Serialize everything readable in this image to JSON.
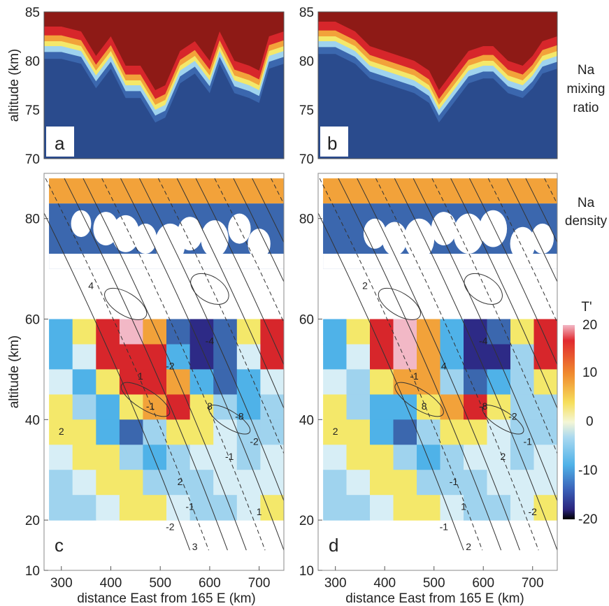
{
  "colors": {
    "background": "#2a4b8d",
    "ocean_blue": "#3b67ae",
    "sky": "#9fd3ee",
    "yellow": "#f4e86a",
    "orange": "#f2a23a",
    "red": "#d7262b",
    "dark_red": "#8e1a16",
    "navy": "#2d2a86",
    "pink": "#f2b8c6"
  },
  "shared_labels": {
    "xlabel": "distance East from 165 E (km)",
    "ylabel": "altitude (km)",
    "top_row_side_label": [
      "Na",
      "mixing",
      "ratio"
    ],
    "bottom_row_side_label": [
      "Na",
      "density"
    ],
    "colorbar_title": "T'",
    "colorbar_ticks": [
      "20",
      "10",
      "0",
      "-10",
      "-20"
    ]
  },
  "chart_data": [
    {
      "panel": "a",
      "type": "heatmap",
      "title": "",
      "xlabel": "",
      "ylabel": "altitude (km)",
      "xlim": [
        265,
        750
      ],
      "ylim": [
        70,
        85
      ],
      "yticks": [
        70,
        75,
        80,
        85
      ],
      "series": [
        {
          "name": "Na mixing ratio",
          "x": [
            265,
            300,
            340,
            370,
            400,
            430,
            460,
            490,
            510,
            540,
            570,
            600,
            620,
            650,
            680,
            700,
            720,
            750
          ],
          "layer_top_altitude": [
            83.5,
            83.5,
            83.0,
            80.5,
            82.5,
            79.5,
            79.5,
            77.0,
            77.5,
            81.0,
            82.0,
            80.0,
            83.0,
            80.0,
            79.5,
            79.0,
            82.5,
            83.0
          ]
        }
      ]
    },
    {
      "panel": "b",
      "type": "heatmap",
      "title": "",
      "xlabel": "",
      "ylabel": "",
      "xlim": [
        265,
        750
      ],
      "ylim": [
        70,
        85
      ],
      "yticks": [
        70,
        75,
        80,
        85
      ],
      "series": [
        {
          "name": "Na mixing ratio",
          "x": [
            265,
            300,
            340,
            370,
            400,
            430,
            460,
            490,
            510,
            540,
            570,
            600,
            620,
            650,
            680,
            700,
            720,
            750
          ],
          "layer_top_altitude": [
            84.0,
            84.0,
            83.0,
            81.5,
            81.0,
            80.5,
            80.0,
            79.0,
            77.0,
            79.0,
            81.0,
            81.5,
            81.5,
            80.0,
            79.5,
            80.5,
            82.0,
            82.5
          ]
        }
      ]
    },
    {
      "panel": "c",
      "type": "heatmap",
      "title": "",
      "xlabel": "distance East from 165 E (km)",
      "ylabel": "altitude (km)",
      "xlim": [
        265,
        750
      ],
      "ylim": [
        10,
        89
      ],
      "xticks": [
        300,
        400,
        500,
        600,
        700
      ],
      "yticks": [
        10,
        20,
        40,
        60,
        80
      ],
      "contour_labels": [
        "4",
        "-4",
        "2",
        "-2",
        "1",
        "-1",
        "8",
        "-8",
        "-2",
        "-1",
        "2",
        "-1",
        "1",
        "-2",
        "3"
      ],
      "series": [
        {
          "name": "T'",
          "rows_altitude": [
            57,
            52,
            47,
            43,
            38,
            33,
            28,
            23
          ],
          "cols_x": [
            280,
            330,
            380,
            430,
            480,
            530,
            580,
            630,
            680,
            730
          ],
          "values": [
            [
              -5,
              5,
              15,
              18,
              10,
              -10,
              -15,
              -10,
              5,
              15
            ],
            [
              -5,
              0,
              12,
              15,
              12,
              -5,
              -18,
              -12,
              0,
              12
            ],
            [
              0,
              -5,
              5,
              12,
              14,
              8,
              -8,
              -10,
              -5,
              0
            ],
            [
              3,
              -2,
              -8,
              2,
              8,
              12,
              5,
              -3,
              -5,
              -4
            ],
            [
              4,
              2,
              -5,
              -10,
              -3,
              4,
              5,
              0,
              -3,
              -2
            ],
            [
              1,
              4,
              2,
              -4,
              -6,
              -2,
              0,
              -1,
              -2,
              -1
            ],
            [
              -2,
              0,
              4,
              3,
              -3,
              -4,
              -2,
              0,
              0,
              -1
            ],
            [
              -2,
              -2,
              0,
              2,
              2,
              0,
              -3,
              -2,
              1,
              3
            ]
          ]
        }
      ]
    },
    {
      "panel": "d",
      "type": "heatmap",
      "title": "",
      "xlabel": "distance East from 165 E (km)",
      "ylabel": "",
      "xlim": [
        265,
        750
      ],
      "ylim": [
        10,
        89
      ],
      "xticks": [
        300,
        400,
        500,
        600,
        700
      ],
      "yticks": [
        10,
        20,
        40,
        60,
        80
      ],
      "contour_labels": [
        "2",
        "-4",
        "2",
        "4",
        "-1",
        "8",
        "-8",
        "-2",
        "-1",
        "2",
        "-1",
        "1",
        "-2",
        "-1",
        "2"
      ],
      "series": [
        {
          "name": "T'",
          "rows_altitude": [
            57,
            52,
            47,
            43,
            38,
            33,
            28,
            23
          ],
          "cols_x": [
            280,
            330,
            380,
            430,
            480,
            530,
            580,
            630,
            680,
            730
          ],
          "values": [
            [
              -5,
              5,
              14,
              16,
              8,
              -8,
              -14,
              -12,
              5,
              14
            ],
            [
              -6,
              0,
              12,
              16,
              10,
              -6,
              -16,
              -18,
              -4,
              12
            ],
            [
              0,
              -4,
              4,
              10,
              8,
              -4,
              -10,
              -8,
              -2,
              2
            ],
            [
              2,
              -3,
              -8,
              -6,
              3,
              10,
              12,
              2,
              -2,
              -3
            ],
            [
              3,
              2,
              -5,
              -10,
              -4,
              2,
              4,
              0,
              -2,
              -2
            ],
            [
              1,
              4,
              2,
              -4,
              -6,
              -3,
              -1,
              -1,
              -2,
              -1
            ],
            [
              -2,
              0,
              3,
              3,
              -3,
              -4,
              -2,
              0,
              0,
              -1
            ],
            [
              -2,
              -2,
              0,
              2,
              2,
              -1,
              -3,
              -2,
              0,
              2
            ]
          ]
        }
      ]
    }
  ]
}
